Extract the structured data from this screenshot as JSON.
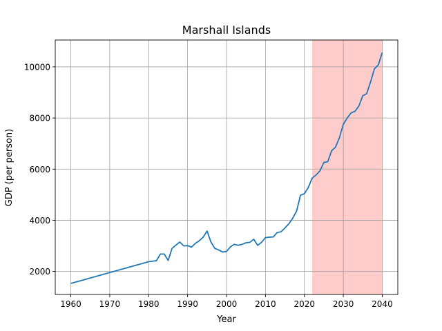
{
  "chart_data": {
    "type": "line",
    "title": "Marshall Islands",
    "xlabel": "Year",
    "ylabel": "GDP (per person)",
    "xlim": [
      1956,
      2044
    ],
    "ylim": [
      1100,
      11050
    ],
    "xticks": [
      1960,
      1970,
      1980,
      1990,
      2000,
      2010,
      2020,
      2030,
      2040
    ],
    "yticks": [
      2000,
      4000,
      6000,
      8000,
      10000
    ],
    "grid": true,
    "shaded_region": {
      "x_start": 2022,
      "x_end": 2040,
      "color": "#ffcccc"
    },
    "series": [
      {
        "color": "#1f77b4",
        "x": [
          1960,
          1980,
          1981,
          1982,
          1983,
          1984,
          1985,
          1986,
          1987,
          1988,
          1989,
          1990,
          1991,
          1992,
          1993,
          1994,
          1995,
          1996,
          1997,
          1998,
          1999,
          2000,
          2001,
          2002,
          2003,
          2004,
          2005,
          2006,
          2007,
          2008,
          2009,
          2010,
          2011,
          2012,
          2013,
          2014,
          2015,
          2016,
          2017,
          2018,
          2019,
          2020,
          2021,
          2022,
          2023,
          2024,
          2025,
          2026,
          2027,
          2028,
          2029,
          2030,
          2031,
          2032,
          2033,
          2034,
          2035,
          2036,
          2037,
          2038,
          2039,
          2040
        ],
        "y": [
          1530,
          2380,
          2400,
          2420,
          2680,
          2680,
          2430,
          2900,
          3030,
          3150,
          3000,
          3010,
          2950,
          3100,
          3200,
          3340,
          3580,
          3150,
          2900,
          2840,
          2760,
          2780,
          2960,
          3060,
          3020,
          3060,
          3120,
          3140,
          3260,
          3020,
          3140,
          3320,
          3340,
          3350,
          3520,
          3550,
          3700,
          3860,
          4080,
          4360,
          4980,
          5040,
          5280,
          5650,
          5770,
          5930,
          6260,
          6290,
          6720,
          6860,
          7230,
          7750,
          8000,
          8200,
          8260,
          8470,
          8870,
          8950,
          9410,
          9920,
          10080,
          10560
        ]
      }
    ]
  }
}
